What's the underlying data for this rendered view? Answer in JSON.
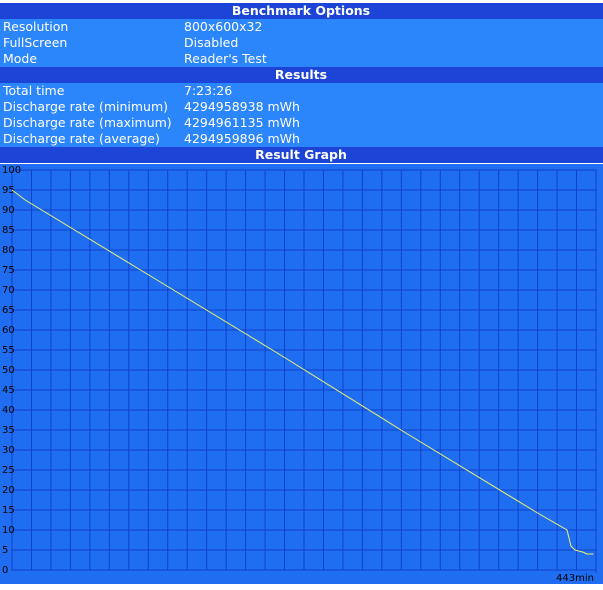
{
  "benchmark_options": {
    "title": "Benchmark Options",
    "rows": [
      [
        "Resolution",
        "800x600x32"
      ],
      [
        "FullScreen",
        "Disabled"
      ],
      [
        "Mode",
        "Reader's Test"
      ]
    ]
  },
  "results": {
    "title": "Results",
    "rows": [
      [
        "Total time",
        "7:23:26"
      ],
      [
        "Discharge rate (minimum)",
        "4294958938 mWh"
      ],
      [
        "Discharge rate (maximum)",
        "4294961135 mWh"
      ],
      [
        "Discharge rate (average)",
        "4294959896 mWh"
      ]
    ]
  },
  "chart_data": {
    "type": "line",
    "title": "Result Graph",
    "x": [
      0,
      10,
      100,
      200,
      300,
      400,
      421,
      424,
      427,
      433,
      436,
      441
    ],
    "series": [
      {
        "color": "#e8f070",
        "values": [
          95,
          92.5,
          74.5,
          54.5,
          34,
          14,
          10,
          6,
          5,
          4.5,
          4,
          4
        ]
      }
    ],
    "xlim": [
      0,
      443
    ],
    "xticks": [
      {
        "value": 443,
        "label": "443min"
      }
    ],
    "ylim": [
      0,
      100
    ],
    "yticks": [
      0,
      5,
      10,
      15,
      20,
      25,
      30,
      35,
      40,
      45,
      50,
      55,
      60,
      65,
      70,
      75,
      80,
      85,
      90,
      95,
      100
    ],
    "grid": true
  }
}
